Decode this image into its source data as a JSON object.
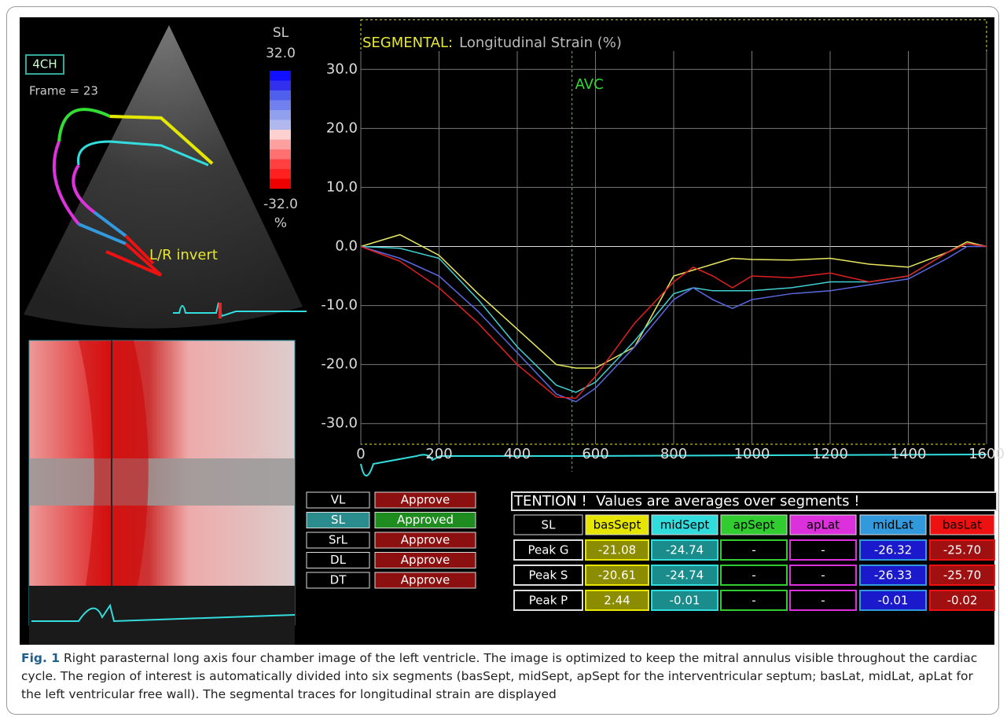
{
  "chart_data": {
    "type": "line",
    "title": "SEGMENTAL:",
    "subtitle": "Longitudinal Strain (%)",
    "x": [
      0,
      100,
      200,
      300,
      400,
      500,
      550,
      600,
      700,
      800,
      850,
      900,
      950,
      1000,
      1100,
      1200,
      1300,
      1400,
      1500,
      1550,
      1600
    ],
    "series": [
      {
        "name": "basSept",
        "color": "#e8e860",
        "values": [
          0,
          2,
          -1.5,
          -8,
          -14,
          -20,
          -20.6,
          -20.6,
          -17,
          -5,
          -4,
          -3,
          -2,
          -2.2,
          -2.3,
          -2,
          -3,
          -3.5,
          -1,
          0.8,
          0
        ]
      },
      {
        "name": "midSept",
        "color": "#40d0d0",
        "values": [
          0,
          -0.3,
          -2,
          -9,
          -17,
          -23.5,
          -24.7,
          -23,
          -16,
          -8,
          -7,
          -7.5,
          -7.5,
          -7.5,
          -7,
          -6,
          -6,
          -5,
          -1,
          0.5,
          0
        ]
      },
      {
        "name": "midLat",
        "color": "#5a6ae0",
        "values": [
          0,
          -2,
          -5,
          -11,
          -18,
          -25,
          -26.3,
          -24,
          -17,
          -9,
          -7,
          -9,
          -10.5,
          -9,
          -8,
          -7.5,
          -6.5,
          -5.5,
          -2,
          0,
          0
        ]
      },
      {
        "name": "basLat",
        "color": "#e02020",
        "values": [
          0,
          -2.5,
          -7,
          -13,
          -20,
          -25.5,
          -25.7,
          -22,
          -13,
          -6,
          -3.5,
          -5,
          -7,
          -5,
          -5.3,
          -4.5,
          -6,
          -5,
          -1,
          0.5,
          0
        ]
      }
    ],
    "xlim": [
      0,
      1600
    ],
    "ylim": [
      -33.5,
      33.1
    ],
    "xticks": [
      0,
      200,
      400,
      600,
      800,
      1000,
      1200,
      1400,
      1600
    ],
    "yticks": [
      {
        "value": 30,
        "label": "30.0"
      },
      {
        "value": 20,
        "label": "20.0"
      },
      {
        "value": 10,
        "label": "10.0"
      },
      {
        "value": 0,
        "label": "0.0"
      },
      {
        "value": -10,
        "label": "-10.0"
      },
      {
        "value": -20,
        "label": "-20.0"
      },
      {
        "value": -30,
        "label": "-30.0"
      }
    ],
    "grid": true,
    "annotations": [
      {
        "x": 540,
        "label": "AVC"
      }
    ]
  },
  "echo": {
    "view": "4CH",
    "frame": "Frame = 23",
    "scale_name": "SL",
    "scale_max": "32.0",
    "scale_min": "-32.0",
    "scale_unit": "%",
    "note": "L/R invert"
  },
  "buttons": [
    {
      "label": "VL",
      "status": "Approve"
    },
    {
      "label": "SL",
      "status": "Approved"
    },
    {
      "label": "SrL",
      "status": "Approve"
    },
    {
      "label": "DL",
      "status": "Approve"
    },
    {
      "label": "DT",
      "status": "Approve"
    }
  ],
  "table": {
    "title": "TENTION !  Values are averages over segments !",
    "columns": [
      {
        "name": "SL"
      },
      {
        "name": "basSept",
        "color": "#e6e600",
        "cell": "#8c8c00"
      },
      {
        "name": "midSept",
        "color": "#30dcdc",
        "cell": "#1a8c8c"
      },
      {
        "name": "apSept",
        "color": "#30cc30",
        "cell": "#000000"
      },
      {
        "name": "apLat",
        "color": "#dc30dc",
        "cell": "#000000"
      },
      {
        "name": "midLat",
        "color": "#3399dd",
        "cell": "#1a1acc"
      },
      {
        "name": "basLat",
        "color": "#ee1111",
        "cell": "#a01010"
      }
    ],
    "rows": [
      [
        "Peak G",
        "-21.08",
        "-24.74",
        "-",
        "-",
        "-26.32",
        "-25.70"
      ],
      [
        "Peak S",
        "-20.61",
        "-24.74",
        "-",
        "-",
        "-26.33",
        "-25.70"
      ],
      [
        "Peak P",
        "2.44",
        "-0.01",
        "-",
        "-",
        "-0.01",
        "-0.02"
      ]
    ]
  },
  "caption": {
    "label": "Fig. 1",
    "text": " Right parasternal long axis four chamber image of the left ventricle. The image is optimized to keep the mitral annulus visible throughout the cardiac cycle. The region of interest is automatically divided into six segments (basSept, midSept, apSept for the interventricular septum; basLat, midLat, apLat for the left ventricular free wall). The segmental traces for longitudinal strain are displayed"
  }
}
